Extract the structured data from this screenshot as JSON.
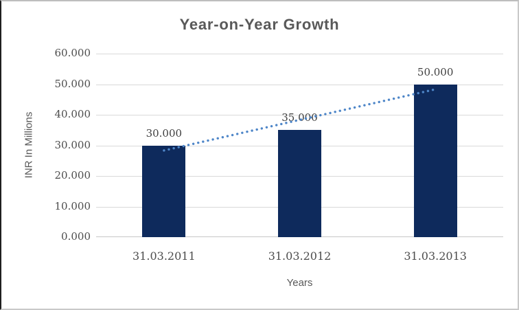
{
  "chart_data": {
    "type": "bar",
    "title": "Year-on-Year Growth",
    "categories": [
      "31.03.2011",
      "31.03.2012",
      "31.03.2013"
    ],
    "values": [
      30,
      35,
      50
    ],
    "data_labels": [
      "30.000",
      "35.000",
      "50.000"
    ],
    "xlabel": "Years",
    "ylabel": "INR In Millions",
    "ylim": [
      0,
      60
    ],
    "ytick_values": [
      0,
      10,
      20,
      30,
      40,
      50,
      60
    ],
    "ytick_labels": [
      "0.000",
      "10.000",
      "20.000",
      "30.000",
      "40.000",
      "50.000",
      "60.000"
    ],
    "grid": true,
    "legend": "none",
    "colors": {
      "bar": "#0e2a5c",
      "trendline": "#4e86c8",
      "title_text": "#595959",
      "tick_text": "#4c4c4c",
      "data_label_text": "#3f3f3f",
      "gridline": "#d9d9d9"
    },
    "trendline": {
      "type": "linear",
      "line_style": "dotted",
      "start_value": 28.333,
      "end_value": 48.333
    }
  }
}
